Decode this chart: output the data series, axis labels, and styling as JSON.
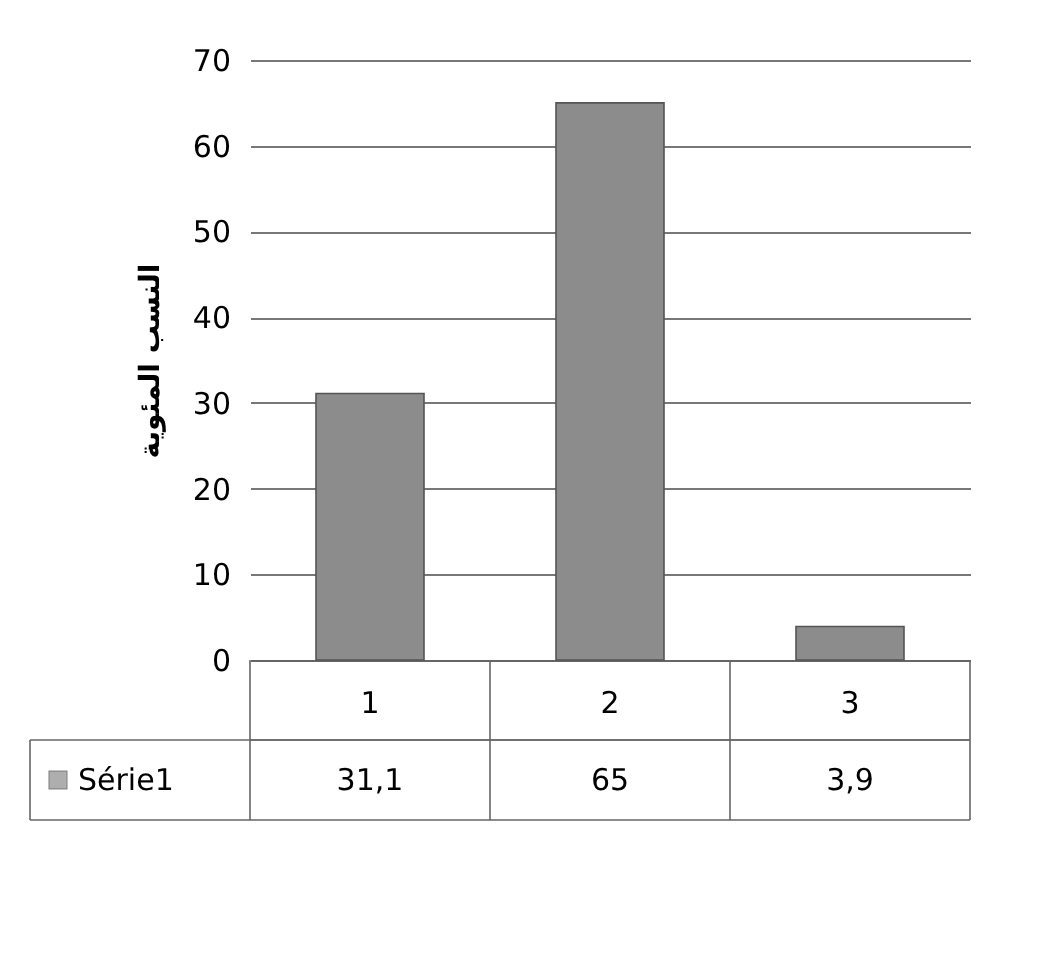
{
  "chart_data": {
    "type": "bar",
    "ylabel": "النسب المئوية",
    "categories": [
      "1",
      "2",
      "3"
    ],
    "series": [
      {
        "name": "Série1",
        "color": "#8c8c8c",
        "values": [
          31.1,
          65,
          3.9
        ],
        "value_labels": [
          "31,1",
          "65",
          "3,9"
        ]
      }
    ],
    "ylim": [
      0,
      70
    ],
    "yticks": [
      0,
      10,
      20,
      30,
      40,
      50,
      60,
      70
    ],
    "grid": "y",
    "legend": "bottom"
  }
}
